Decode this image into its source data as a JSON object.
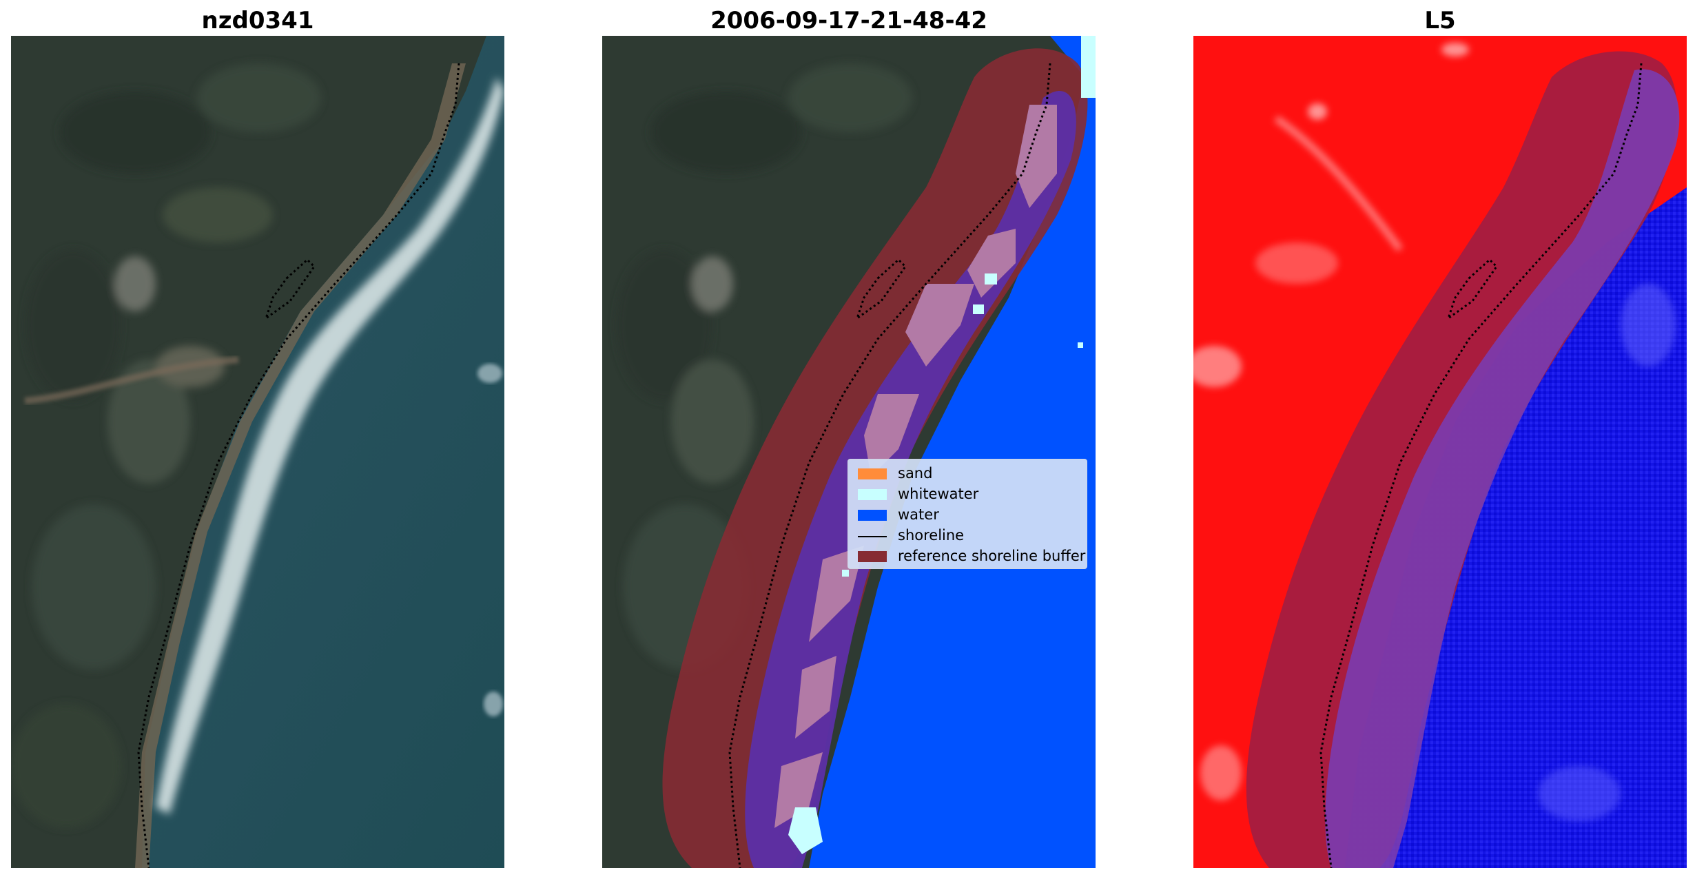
{
  "panels": [
    {
      "title": "nzd0341"
    },
    {
      "title": "2006-09-17-21-48-42"
    },
    {
      "title": "L5"
    }
  ],
  "legend": {
    "items": [
      {
        "label": "sand",
        "color": "#ff8c3a",
        "kind": "patch"
      },
      {
        "label": "whitewater",
        "color": "#c8ffff",
        "kind": "patch"
      },
      {
        "label": "water",
        "color": "#0052ff",
        "kind": "patch"
      },
      {
        "label": "shoreline",
        "color": "#000000",
        "kind": "line"
      },
      {
        "label": "reference shoreline buffer",
        "color": "#862b33",
        "kind": "patch"
      }
    ]
  },
  "colors": {
    "water_class": "#0052ff",
    "buffer": "#862b33",
    "whitewater": "#c8ffff",
    "land_index": "#ff1010",
    "water_index": "#1010ee"
  }
}
